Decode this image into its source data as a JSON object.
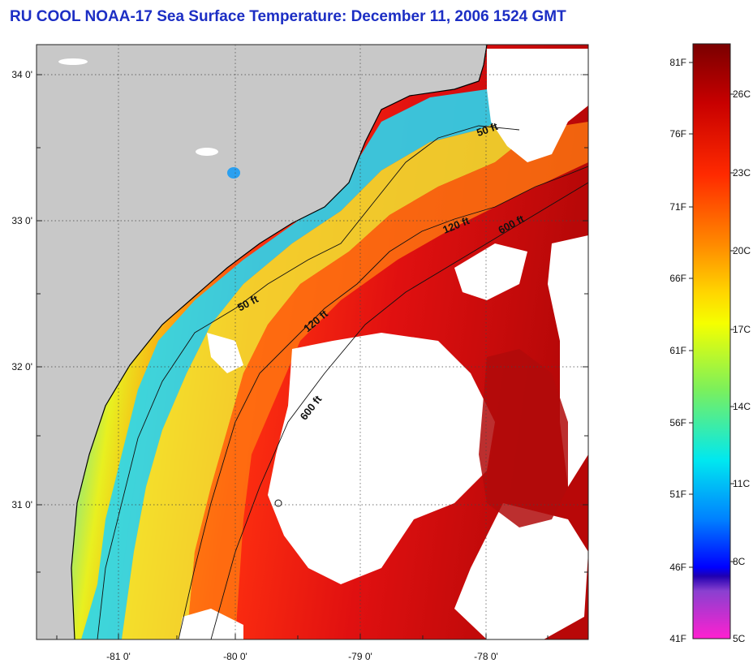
{
  "title": "RU COOL  NOAA-17  Sea Surface Temperature:  December 11, 2006 1524 GMT",
  "latitude_ticks": [
    "34 0'",
    "33 0'",
    "32 0'",
    "31 0'"
  ],
  "longitude_ticks": [
    "-81 0'",
    "-80 0'",
    "-79 0'",
    "-78 0'"
  ],
  "depth_contour_labels": {
    "nearshore_50": "50 ft",
    "mid_50": "50 ft",
    "north_120": "120 ft",
    "mid_120": "120 ft",
    "north_600": "600 ft",
    "south_600": "600 ft"
  },
  "colorbar": {
    "fahrenheit_labels": [
      "81F",
      "76F",
      "71F",
      "66F",
      "61F",
      "56F",
      "51F",
      "46F",
      "41F"
    ],
    "celsius_labels": [
      "26C",
      "23C",
      "20C",
      "17C",
      "14C",
      "11C",
      "8C",
      "5C"
    ]
  },
  "colors": {
    "title": "#1c2ec4",
    "land": "#c8c8c8",
    "cloud": "#ffffff",
    "warm": "#d81010",
    "cold": "#18c8f0"
  }
}
